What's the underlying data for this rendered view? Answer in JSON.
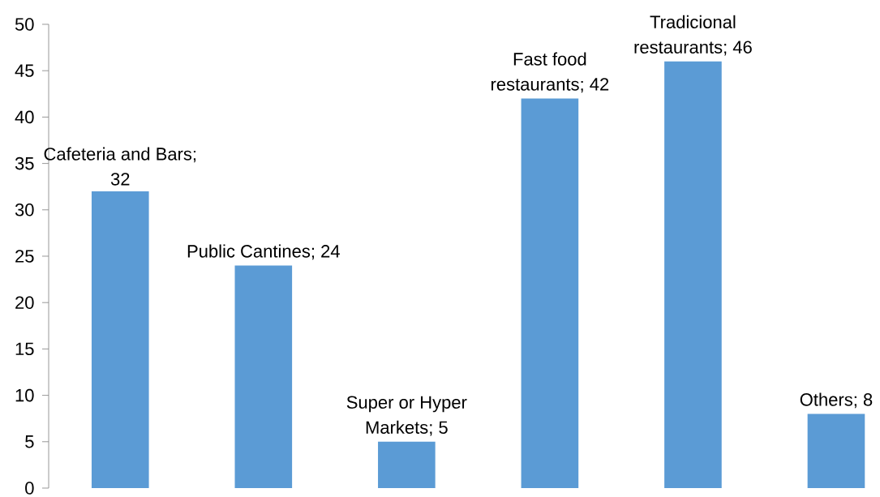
{
  "chart_data": {
    "type": "bar",
    "categories": [
      null,
      null,
      null,
      null,
      null,
      null
    ],
    "values": [
      32,
      24,
      5,
      42,
      46,
      8
    ],
    "color": "#5b9bd5",
    "value_labels": [
      "Cafeteria and Bars; 32",
      "Public Cantines; 24",
      "Super or Hyper Markets; 5",
      "Fast food restaurants; 42",
      "Tradicional restaurants; 46",
      "Others; 8"
    ],
    "ylim": [
      0,
      50
    ],
    "yticks": [
      0,
      5,
      10,
      15,
      20,
      25,
      30,
      35,
      40,
      45,
      50
    ]
  }
}
